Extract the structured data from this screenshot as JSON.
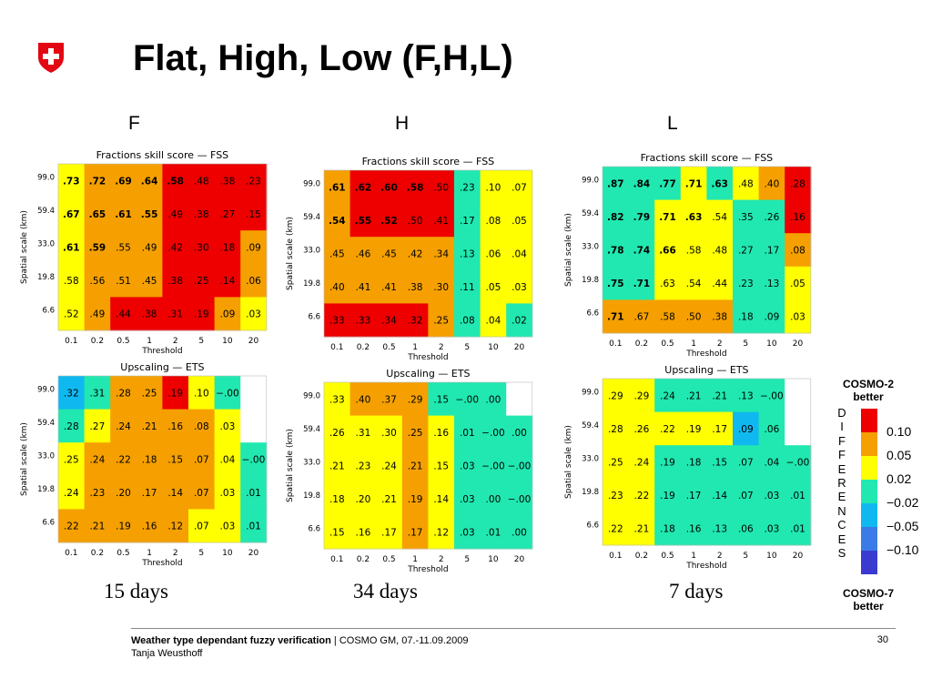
{
  "title": "Flat, High, Low (F,H,L)",
  "column_labels": [
    "F",
    "H",
    "L"
  ],
  "day_labels": [
    "15 days",
    "34 days",
    "7 days"
  ],
  "colors": {
    "red": "#ee0000",
    "orange": "#f5a000",
    "yellow": "#ffff00",
    "teal": "#20e8b0",
    "cyan": "#10b8f0",
    "blue": "#3a7be8",
    "navy": "#3a3ad0",
    "white": "#ffffff"
  },
  "legend": {
    "top_label": "COSMO-2 better",
    "bottom_label": "COSMO-7 better",
    "letters": [
      "D",
      "I",
      "F",
      "F",
      "E",
      "R",
      "E",
      "N",
      "C",
      "E",
      "S"
    ],
    "colors": [
      "red",
      "orange",
      "yellow",
      "teal",
      "cyan",
      "blue",
      "navy"
    ],
    "ticks": [
      "0.10",
      "0.05",
      "0.02",
      "−0.02",
      "−0.05",
      "−0.10"
    ]
  },
  "footer": {
    "title": "Weather type dependant fuzzy verification",
    "event": " | COSMO GM, 07.-11.09.2009",
    "author": "Tanja Weusthoff",
    "page": "30"
  },
  "chart_data": [
    {
      "type": "heatmap",
      "id": "F-FSS",
      "title": "Fractions skill score — FSS",
      "xlabel": "Threshold",
      "ylabel": "Spatial scale (km)",
      "x": [
        "0.1",
        "0.2",
        "0.5",
        "1",
        "2",
        "5",
        "10",
        "20"
      ],
      "y": [
        "99.0",
        "59.4",
        "33.0",
        "19.8",
        "6.6"
      ],
      "values": [
        [
          ".73",
          ".72",
          ".69",
          ".64",
          ".58",
          ".48",
          ".38",
          ".23"
        ],
        [
          ".67",
          ".65",
          ".61",
          ".55",
          ".49",
          ".38",
          ".27",
          ".15"
        ],
        [
          ".61",
          ".59",
          ".55",
          ".49",
          ".42",
          ".30",
          ".18",
          ".09"
        ],
        [
          ".58",
          ".56",
          ".51",
          ".45",
          ".38",
          ".25",
          ".14",
          ".06"
        ],
        [
          ".52",
          ".49",
          ".44",
          ".38",
          ".31",
          ".19",
          ".09",
          ".03"
        ]
      ],
      "bold": [
        [
          1,
          1,
          1,
          1,
          1,
          0,
          0,
          0
        ],
        [
          1,
          1,
          1,
          1,
          0,
          0,
          0,
          0
        ],
        [
          1,
          1,
          0,
          0,
          0,
          0,
          0,
          0
        ],
        [
          0,
          0,
          0,
          0,
          0,
          0,
          0,
          0
        ],
        [
          0,
          0,
          0,
          0,
          0,
          0,
          0,
          0
        ]
      ],
      "colors": [
        [
          "yellow",
          "orange",
          "orange",
          "orange",
          "red",
          "red",
          "red",
          "red"
        ],
        [
          "yellow",
          "orange",
          "orange",
          "orange",
          "red",
          "red",
          "red",
          "red"
        ],
        [
          "yellow",
          "orange",
          "orange",
          "orange",
          "red",
          "red",
          "red",
          "orange"
        ],
        [
          "yellow",
          "orange",
          "orange",
          "orange",
          "red",
          "red",
          "red",
          "orange"
        ],
        [
          "yellow",
          "orange",
          "red",
          "red",
          "red",
          "red",
          "orange",
          "yellow"
        ]
      ]
    },
    {
      "type": "heatmap",
      "id": "H-FSS",
      "title": "Fractions skill score — FSS",
      "xlabel": "Threshold",
      "ylabel": "Spatial scale (km)",
      "x": [
        "0.1",
        "0.2",
        "0.5",
        "1",
        "2",
        "5",
        "10",
        "20"
      ],
      "y": [
        "99.0",
        "59.4",
        "33.0",
        "19.8",
        "6.6"
      ],
      "values": [
        [
          ".61",
          ".62",
          ".60",
          ".58",
          ".50",
          ".23",
          ".10",
          ".07"
        ],
        [
          ".54",
          ".55",
          ".52",
          ".50",
          ".41",
          ".17",
          ".08",
          ".05"
        ],
        [
          ".45",
          ".46",
          ".45",
          ".42",
          ".34",
          ".13",
          ".06",
          ".04"
        ],
        [
          ".40",
          ".41",
          ".41",
          ".38",
          ".30",
          ".11",
          ".05",
          ".03"
        ],
        [
          ".33",
          ".33",
          ".34",
          ".32",
          ".25",
          ".08",
          ".04",
          ".02"
        ]
      ],
      "bold": [
        [
          1,
          1,
          1,
          1,
          0,
          0,
          0,
          0
        ],
        [
          1,
          1,
          1,
          0,
          0,
          0,
          0,
          0
        ],
        [
          0,
          0,
          0,
          0,
          0,
          0,
          0,
          0
        ],
        [
          0,
          0,
          0,
          0,
          0,
          0,
          0,
          0
        ],
        [
          0,
          0,
          0,
          0,
          0,
          0,
          0,
          0
        ]
      ],
      "colors": [
        [
          "orange",
          "red",
          "red",
          "red",
          "red",
          "teal",
          "yellow",
          "yellow"
        ],
        [
          "orange",
          "red",
          "red",
          "red",
          "red",
          "teal",
          "yellow",
          "yellow"
        ],
        [
          "orange",
          "orange",
          "orange",
          "orange",
          "orange",
          "teal",
          "yellow",
          "yellow"
        ],
        [
          "orange",
          "orange",
          "orange",
          "orange",
          "orange",
          "teal",
          "yellow",
          "yellow"
        ],
        [
          "red",
          "red",
          "red",
          "red",
          "orange",
          "teal",
          "yellow",
          "teal"
        ]
      ]
    },
    {
      "type": "heatmap",
      "id": "L-FSS",
      "title": "Fractions skill score — FSS",
      "xlabel": "Threshold",
      "ylabel": "Spatial scale (km)",
      "x": [
        "0.1",
        "0.2",
        "0.5",
        "1",
        "2",
        "5",
        "10",
        "20"
      ],
      "y": [
        "99.0",
        "59.4",
        "33.0",
        "19.8",
        "6.6"
      ],
      "values": [
        [
          ".87",
          ".84",
          ".77",
          ".71",
          ".63",
          ".48",
          ".40",
          ".28"
        ],
        [
          ".82",
          ".79",
          ".71",
          ".63",
          ".54",
          ".35",
          ".26",
          ".16"
        ],
        [
          ".78",
          ".74",
          ".66",
          ".58",
          ".48",
          ".27",
          ".17",
          ".08"
        ],
        [
          ".75",
          ".71",
          ".63",
          ".54",
          ".44",
          ".23",
          ".13",
          ".05"
        ],
        [
          ".71",
          ".67",
          ".58",
          ".50",
          ".38",
          ".18",
          ".09",
          ".03"
        ]
      ],
      "bold": [
        [
          1,
          1,
          1,
          1,
          1,
          0,
          0,
          0
        ],
        [
          1,
          1,
          1,
          1,
          0,
          0,
          0,
          0
        ],
        [
          1,
          1,
          1,
          0,
          0,
          0,
          0,
          0
        ],
        [
          1,
          1,
          0,
          0,
          0,
          0,
          0,
          0
        ],
        [
          1,
          0,
          0,
          0,
          0,
          0,
          0,
          0
        ]
      ],
      "colors": [
        [
          "teal",
          "teal",
          "teal",
          "yellow",
          "teal",
          "yellow",
          "orange",
          "red"
        ],
        [
          "teal",
          "teal",
          "yellow",
          "yellow",
          "yellow",
          "teal",
          "teal",
          "red"
        ],
        [
          "teal",
          "teal",
          "yellow",
          "yellow",
          "yellow",
          "teal",
          "teal",
          "orange"
        ],
        [
          "teal",
          "teal",
          "yellow",
          "yellow",
          "yellow",
          "teal",
          "teal",
          "yellow"
        ],
        [
          "orange",
          "orange",
          "orange",
          "orange",
          "orange",
          "teal",
          "teal",
          "yellow"
        ]
      ]
    },
    {
      "type": "heatmap",
      "id": "F-ETS",
      "title": "Upscaling — ETS",
      "xlabel": "Threshold",
      "ylabel": "Spatial scale (km)",
      "x": [
        "0.1",
        "0.2",
        "0.5",
        "1",
        "2",
        "5",
        "10",
        "20"
      ],
      "y": [
        "99.0",
        "59.4",
        "33.0",
        "19.8",
        "6.6"
      ],
      "values": [
        [
          ".32",
          ".31",
          ".28",
          ".25",
          ".19",
          ".10",
          "−.00",
          ""
        ],
        [
          ".28",
          ".27",
          ".24",
          ".21",
          ".16",
          ".08",
          ".03",
          ""
        ],
        [
          ".25",
          ".24",
          ".22",
          ".18",
          ".15",
          ".07",
          ".04",
          "−.00"
        ],
        [
          ".24",
          ".23",
          ".20",
          ".17",
          ".14",
          ".07",
          ".03",
          ".01"
        ],
        [
          ".22",
          ".21",
          ".19",
          ".16",
          ".12",
          ".07",
          ".03",
          ".01"
        ]
      ],
      "bold": [
        [
          0,
          0,
          0,
          0,
          0,
          0,
          0,
          0
        ],
        [
          0,
          0,
          0,
          0,
          0,
          0,
          0,
          0
        ],
        [
          0,
          0,
          0,
          0,
          0,
          0,
          0,
          0
        ],
        [
          0,
          0,
          0,
          0,
          0,
          0,
          0,
          0
        ],
        [
          0,
          0,
          0,
          0,
          0,
          0,
          0,
          0
        ]
      ],
      "colors": [
        [
          "cyan",
          "teal",
          "orange",
          "orange",
          "red",
          "yellow",
          "teal",
          "white"
        ],
        [
          "teal",
          "yellow",
          "orange",
          "orange",
          "orange",
          "orange",
          "yellow",
          "white"
        ],
        [
          "yellow",
          "orange",
          "orange",
          "orange",
          "orange",
          "orange",
          "yellow",
          "teal"
        ],
        [
          "yellow",
          "orange",
          "orange",
          "orange",
          "orange",
          "orange",
          "yellow",
          "teal"
        ],
        [
          "orange",
          "orange",
          "orange",
          "orange",
          "orange",
          "yellow",
          "yellow",
          "teal"
        ]
      ]
    },
    {
      "type": "heatmap",
      "id": "H-ETS",
      "title": "Upscaling — ETS",
      "xlabel": "Threshold",
      "ylabel": "Spatial scale (km)",
      "x": [
        "0.1",
        "0.2",
        "0.5",
        "1",
        "2",
        "5",
        "10",
        "20"
      ],
      "y": [
        "99.0",
        "59.4",
        "33.0",
        "19.8",
        "6.6"
      ],
      "values": [
        [
          ".33",
          ".40",
          ".37",
          ".29",
          ".15",
          "−.00",
          ".00",
          ""
        ],
        [
          ".26",
          ".31",
          ".30",
          ".25",
          ".16",
          ".01",
          "−.00",
          ".00"
        ],
        [
          ".21",
          ".23",
          ".24",
          ".21",
          ".15",
          ".03",
          "−.00",
          "−.00"
        ],
        [
          ".18",
          ".20",
          ".21",
          ".19",
          ".14",
          ".03",
          ".00",
          "−.00"
        ],
        [
          ".15",
          ".16",
          ".17",
          ".17",
          ".12",
          ".03",
          ".01",
          ".00"
        ]
      ],
      "bold": [
        [
          0,
          0,
          0,
          0,
          0,
          0,
          0,
          0
        ],
        [
          0,
          0,
          0,
          0,
          0,
          0,
          0,
          0
        ],
        [
          0,
          0,
          0,
          0,
          0,
          0,
          0,
          0
        ],
        [
          0,
          0,
          0,
          0,
          0,
          0,
          0,
          0
        ],
        [
          0,
          0,
          0,
          0,
          0,
          0,
          0,
          0
        ]
      ],
      "colors": [
        [
          "yellow",
          "orange",
          "orange",
          "orange",
          "teal",
          "teal",
          "teal",
          "white"
        ],
        [
          "yellow",
          "yellow",
          "yellow",
          "orange",
          "yellow",
          "teal",
          "teal",
          "teal"
        ],
        [
          "yellow",
          "yellow",
          "yellow",
          "orange",
          "yellow",
          "teal",
          "teal",
          "teal"
        ],
        [
          "yellow",
          "yellow",
          "yellow",
          "orange",
          "yellow",
          "teal",
          "teal",
          "teal"
        ],
        [
          "yellow",
          "yellow",
          "yellow",
          "orange",
          "yellow",
          "teal",
          "teal",
          "teal"
        ]
      ]
    },
    {
      "type": "heatmap",
      "id": "L-ETS",
      "title": "Upscaling — ETS",
      "xlabel": "Threshold",
      "ylabel": "Spatial scale (km)",
      "x": [
        "0.1",
        "0.2",
        "0.5",
        "1",
        "2",
        "5",
        "10",
        "20"
      ],
      "y": [
        "99.0",
        "59.4",
        "33.0",
        "19.8",
        "6.6"
      ],
      "values": [
        [
          ".29",
          ".29",
          ".24",
          ".21",
          ".21",
          ".13",
          "−.00",
          ""
        ],
        [
          ".28",
          ".26",
          ".22",
          ".19",
          ".17",
          ".09",
          ".06",
          ""
        ],
        [
          ".25",
          ".24",
          ".19",
          ".18",
          ".15",
          ".07",
          ".04",
          "−.00"
        ],
        [
          ".23",
          ".22",
          ".19",
          ".17",
          ".14",
          ".07",
          ".03",
          ".01"
        ],
        [
          ".22",
          ".21",
          ".18",
          ".16",
          ".13",
          ".06",
          ".03",
          ".01"
        ]
      ],
      "bold": [
        [
          0,
          0,
          0,
          0,
          0,
          0,
          0,
          0
        ],
        [
          0,
          0,
          0,
          0,
          0,
          0,
          0,
          0
        ],
        [
          0,
          0,
          0,
          0,
          0,
          0,
          0,
          0
        ],
        [
          0,
          0,
          0,
          0,
          0,
          0,
          0,
          0
        ],
        [
          0,
          0,
          0,
          0,
          0,
          0,
          0,
          0
        ]
      ],
      "colors": [
        [
          "yellow",
          "yellow",
          "teal",
          "teal",
          "teal",
          "teal",
          "teal",
          "white"
        ],
        [
          "yellow",
          "yellow",
          "yellow",
          "yellow",
          "yellow",
          "cyan",
          "teal",
          "white"
        ],
        [
          "yellow",
          "yellow",
          "teal",
          "teal",
          "teal",
          "teal",
          "teal",
          "teal"
        ],
        [
          "yellow",
          "yellow",
          "teal",
          "teal",
          "teal",
          "teal",
          "teal",
          "teal"
        ],
        [
          "yellow",
          "yellow",
          "teal",
          "teal",
          "teal",
          "teal",
          "teal",
          "teal"
        ]
      ]
    }
  ]
}
